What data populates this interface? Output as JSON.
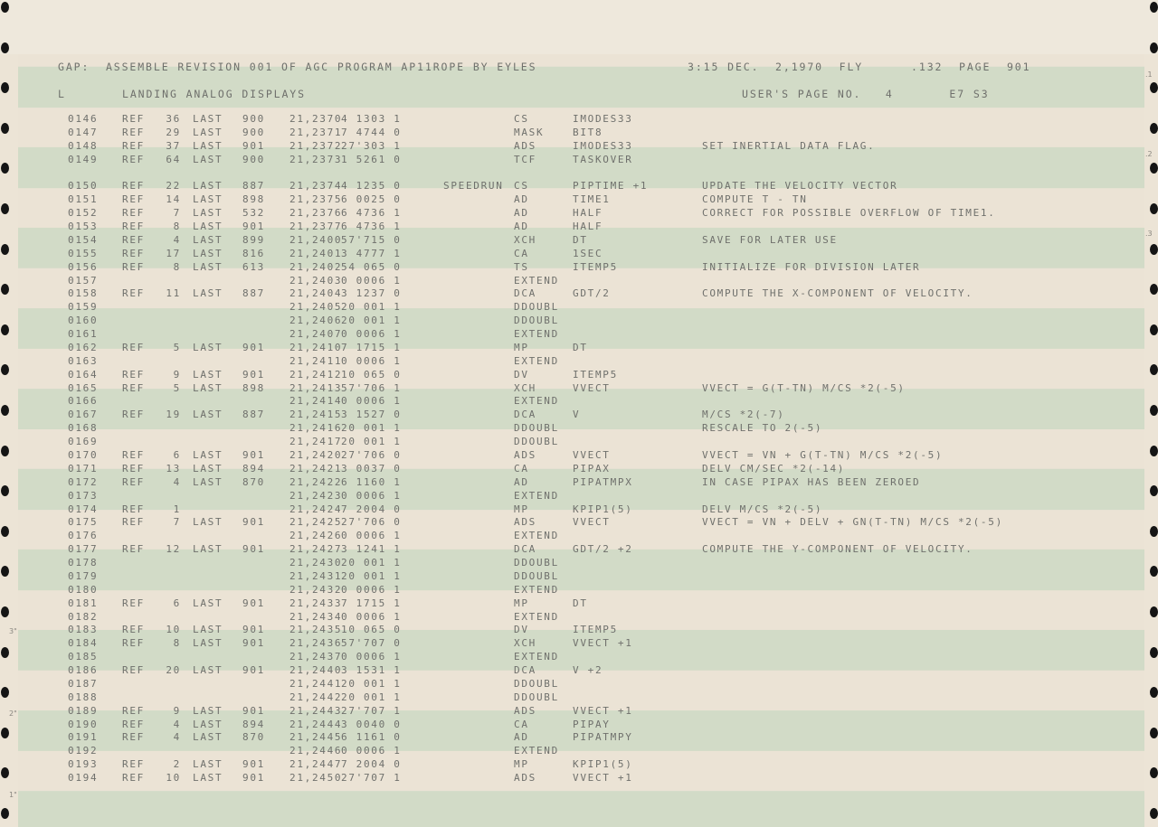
{
  "header": {
    "line1_left": "GAP:  ASSEMBLE REVISION 001 OF AGC PROGRAM AP11ROPE BY EYLES",
    "line1_right": "3:15 DEC.  2,1970  FLY      .132  PAGE  901",
    "line2_left": "L",
    "line2_title": "LANDING ANALOG DISPLAYS",
    "line2_right": "USER'S PAGE NO.   4       E7 S3"
  },
  "labels": {
    "ref": "REF",
    "last": "LAST"
  },
  "margin_marks": {
    "left": [
      "3\"",
      "2\"",
      "1\""
    ],
    "right": [
      ".1",
      ".2",
      ".3"
    ]
  },
  "colors": {
    "paper": "#ebe3d5",
    "stripe": "#d2dbc7",
    "ink": "#6f706c",
    "holes": "#151515"
  },
  "rows": [
    {
      "line": "0146",
      "ref": "36",
      "last": "900",
      "addr": "21,2370",
      "code": "4 1303 1",
      "label": "",
      "op": "CS",
      "operand": "IMODES33",
      "comment": ""
    },
    {
      "line": "0147",
      "ref": "29",
      "last": "900",
      "addr": "21,2371",
      "code": "7 4744 0",
      "label": "",
      "op": "MASK",
      "operand": "BIT8",
      "comment": ""
    },
    {
      "line": "0148",
      "ref": "37",
      "last": "901",
      "addr": "21,2372",
      "code": "27'303 1",
      "label": "",
      "op": "ADS",
      "operand": "IMODES33",
      "comment": "SET INERTIAL DATA FLAG."
    },
    {
      "line": "0149",
      "ref": "64",
      "last": "900",
      "addr": "21,2373",
      "code": "1 5261 0",
      "label": "",
      "op": "TCF",
      "operand": "TASKOVER",
      "comment": ""
    },
    {
      "blank": true
    },
    {
      "line": "0150",
      "ref": "22",
      "last": "887",
      "addr": "21,2374",
      "code": "4 1235 0",
      "label": "SPEEDRUN",
      "op": "CS",
      "operand": "PIPTIME +1",
      "comment": "UPDATE THE VELOCITY VECTOR"
    },
    {
      "line": "0151",
      "ref": "14",
      "last": "898",
      "addr": "21,2375",
      "code": "6 0025 0",
      "label": "",
      "op": "AD",
      "operand": "TIME1",
      "comment": "COMPUTE T - TN"
    },
    {
      "line": "0152",
      "ref": "7",
      "last": "532",
      "addr": "21,2376",
      "code": "6 4736 1",
      "label": "",
      "op": "AD",
      "operand": "HALF",
      "comment": "CORRECT FOR POSSIBLE OVERFLOW OF TIME1."
    },
    {
      "line": "0153",
      "ref": "8",
      "last": "901",
      "addr": "21,2377",
      "code": "6 4736 1",
      "label": "",
      "op": "AD",
      "operand": "HALF",
      "comment": ""
    },
    {
      "line": "0154",
      "ref": "4",
      "last": "899",
      "addr": "21,2400",
      "code": "57'715 0",
      "label": "",
      "op": "XCH",
      "operand": "DT",
      "comment": "SAVE FOR LATER USE"
    },
    {
      "line": "0155",
      "ref": "17",
      "last": "816",
      "addr": "21,2401",
      "code": "3 4777 1",
      "label": "",
      "op": "CA",
      "operand": "1SEC",
      "comment": ""
    },
    {
      "line": "0156",
      "ref": "8",
      "last": "613",
      "addr": "21,2402",
      "code": "54 065 0",
      "label": "",
      "op": "TS",
      "operand": "ITEMP5",
      "comment": "INITIALIZE FOR DIVISION LATER"
    },
    {
      "line": "0157",
      "ref": "",
      "last": "",
      "addr": "21,2403",
      "code": "0 0006 1",
      "label": "",
      "op": "EXTEND",
      "operand": "",
      "comment": ""
    },
    {
      "line": "0158",
      "ref": "11",
      "last": "887",
      "addr": "21,2404",
      "code": "3 1237 0",
      "label": "",
      "op": "DCA",
      "operand": "GDT/2",
      "comment": "COMPUTE THE X-COMPONENT OF VELOCITY."
    },
    {
      "line": "0159",
      "ref": "",
      "last": "",
      "addr": "21,2405",
      "code": "20 001 1",
      "label": "",
      "op": "DDOUBL",
      "operand": "",
      "comment": ""
    },
    {
      "line": "0160",
      "ref": "",
      "last": "",
      "addr": "21,2406",
      "code": "20 001 1",
      "label": "",
      "op": "DDOUBL",
      "operand": "",
      "comment": ""
    },
    {
      "line": "0161",
      "ref": "",
      "last": "",
      "addr": "21,2407",
      "code": "0 0006 1",
      "label": "",
      "op": "EXTEND",
      "operand": "",
      "comment": ""
    },
    {
      "line": "0162",
      "ref": "5",
      "last": "901",
      "addr": "21,2410",
      "code": "7 1715 1",
      "label": "",
      "op": "MP",
      "operand": "DT",
      "comment": ""
    },
    {
      "line": "0163",
      "ref": "",
      "last": "",
      "addr": "21,2411",
      "code": "0 0006 1",
      "label": "",
      "op": "EXTEND",
      "operand": "",
      "comment": ""
    },
    {
      "line": "0164",
      "ref": "9",
      "last": "901",
      "addr": "21,2412",
      "code": "10 065 0",
      "label": "",
      "op": "DV",
      "operand": "ITEMP5",
      "comment": ""
    },
    {
      "line": "0165",
      "ref": "5",
      "last": "898",
      "addr": "21,2413",
      "code": "57'706 1",
      "label": "",
      "op": "XCH",
      "operand": "VVECT",
      "comment": "VVECT = G(T-TN) M/CS *2(-5)"
    },
    {
      "line": "0166",
      "ref": "",
      "last": "",
      "addr": "21,2414",
      "code": "0 0006 1",
      "label": "",
      "op": "EXTEND",
      "operand": "",
      "comment": ""
    },
    {
      "line": "0167",
      "ref": "19",
      "last": "887",
      "addr": "21,2415",
      "code": "3 1527 0",
      "label": "",
      "op": "DCA",
      "operand": "V",
      "comment": "M/CS *2(-7)"
    },
    {
      "line": "0168",
      "ref": "",
      "last": "",
      "addr": "21,2416",
      "code": "20 001 1",
      "label": "",
      "op": "DDOUBL",
      "operand": "",
      "comment": "RESCALE TO 2(-5)"
    },
    {
      "line": "0169",
      "ref": "",
      "last": "",
      "addr": "21,2417",
      "code": "20 001 1",
      "label": "",
      "op": "DDOUBL",
      "operand": "",
      "comment": ""
    },
    {
      "line": "0170",
      "ref": "6",
      "last": "901",
      "addr": "21,2420",
      "code": "27'706 0",
      "label": "",
      "op": "ADS",
      "operand": "VVECT",
      "comment": "VVECT = VN + G(T-TN) M/CS *2(-5)"
    },
    {
      "line": "0171",
      "ref": "13",
      "last": "894",
      "addr": "21,2421",
      "code": "3 0037 0",
      "label": "",
      "op": "CA",
      "operand": "PIPAX",
      "comment": "DELV CM/SEC *2(-14)"
    },
    {
      "line": "0172",
      "ref": "4",
      "last": "870",
      "addr": "21,2422",
      "code": "6 1160 1",
      "label": "",
      "op": "AD",
      "operand": "PIPATMPX",
      "comment": "IN CASE PIPAX HAS BEEN ZEROED"
    },
    {
      "line": "0173",
      "ref": "",
      "last": "",
      "addr": "21,2423",
      "code": "0 0006 1",
      "label": "",
      "op": "EXTEND",
      "operand": "",
      "comment": ""
    },
    {
      "line": "0174",
      "ref": "1",
      "last": "",
      "addr": "21,2424",
      "code": "7 2004 0",
      "label": "",
      "op": "MP",
      "operand": "KPIP1(5)",
      "comment": "DELV M/CS *2(-5)"
    },
    {
      "line": "0175",
      "ref": "7",
      "last": "901",
      "addr": "21,2425",
      "code": "27'706 0",
      "label": "",
      "op": "ADS",
      "operand": "VVECT",
      "comment": "VVECT = VN + DELV + GN(T-TN) M/CS *2(-5)"
    },
    {
      "line": "0176",
      "ref": "",
      "last": "",
      "addr": "21,2426",
      "code": "0 0006 1",
      "label": "",
      "op": "EXTEND",
      "operand": "",
      "comment": ""
    },
    {
      "line": "0177",
      "ref": "12",
      "last": "901",
      "addr": "21,2427",
      "code": "3 1241 1",
      "label": "",
      "op": "DCA",
      "operand": "GDT/2 +2",
      "comment": "COMPUTE THE Y-COMPONENT OF VELOCITY."
    },
    {
      "line": "0178",
      "ref": "",
      "last": "",
      "addr": "21,2430",
      "code": "20 001 1",
      "label": "",
      "op": "DDOUBL",
      "operand": "",
      "comment": ""
    },
    {
      "line": "0179",
      "ref": "",
      "last": "",
      "addr": "21,2431",
      "code": "20 001 1",
      "label": "",
      "op": "DDOUBL",
      "operand": "",
      "comment": ""
    },
    {
      "line": "0180",
      "ref": "",
      "last": "",
      "addr": "21,2432",
      "code": "0 0006 1",
      "label": "",
      "op": "EXTEND",
      "operand": "",
      "comment": ""
    },
    {
      "line": "0181",
      "ref": "6",
      "last": "901",
      "addr": "21,2433",
      "code": "7 1715 1",
      "label": "",
      "op": "MP",
      "operand": "DT",
      "comment": ""
    },
    {
      "line": "0182",
      "ref": "",
      "last": "",
      "addr": "21,2434",
      "code": "0 0006 1",
      "label": "",
      "op": "EXTEND",
      "operand": "",
      "comment": ""
    },
    {
      "line": "0183",
      "ref": "10",
      "last": "901",
      "addr": "21,2435",
      "code": "10 065 0",
      "label": "",
      "op": "DV",
      "operand": "ITEMP5",
      "comment": ""
    },
    {
      "line": "0184",
      "ref": "8",
      "last": "901",
      "addr": "21,2436",
      "code": "57'707 0",
      "label": "",
      "op": "XCH",
      "operand": "VVECT +1",
      "comment": ""
    },
    {
      "line": "0185",
      "ref": "",
      "last": "",
      "addr": "21,2437",
      "code": "0 0006 1",
      "label": "",
      "op": "EXTEND",
      "operand": "",
      "comment": ""
    },
    {
      "line": "0186",
      "ref": "20",
      "last": "901",
      "addr": "21,2440",
      "code": "3 1531 1",
      "label": "",
      "op": "DCA",
      "operand": "V +2",
      "comment": ""
    },
    {
      "line": "0187",
      "ref": "",
      "last": "",
      "addr": "21,2441",
      "code": "20 001 1",
      "label": "",
      "op": "DDOUBL",
      "operand": "",
      "comment": ""
    },
    {
      "line": "0188",
      "ref": "",
      "last": "",
      "addr": "21,2442",
      "code": "20 001 1",
      "label": "",
      "op": "DDOUBL",
      "operand": "",
      "comment": ""
    },
    {
      "line": "0189",
      "ref": "9",
      "last": "901",
      "addr": "21,2443",
      "code": "27'707 1",
      "label": "",
      "op": "ADS",
      "operand": "VVECT +1",
      "comment": ""
    },
    {
      "line": "0190",
      "ref": "4",
      "last": "894",
      "addr": "21,2444",
      "code": "3 0040 0",
      "label": "",
      "op": "CA",
      "operand": "PIPAY",
      "comment": ""
    },
    {
      "line": "0191",
      "ref": "4",
      "last": "870",
      "addr": "21,2445",
      "code": "6 1161 0",
      "label": "",
      "op": "AD",
      "operand": "PIPATMPY",
      "comment": ""
    },
    {
      "line": "0192",
      "ref": "",
      "last": "",
      "addr": "21,2446",
      "code": "0 0006 1",
      "label": "",
      "op": "EXTEND",
      "operand": "",
      "comment": ""
    },
    {
      "line": "0193",
      "ref": "2",
      "last": "901",
      "addr": "21,2447",
      "code": "7 2004 0",
      "label": "",
      "op": "MP",
      "operand": "KPIP1(5)",
      "comment": ""
    },
    {
      "line": "0194",
      "ref": "10",
      "last": "901",
      "addr": "21,2450",
      "code": "27'707 1",
      "label": "",
      "op": "ADS",
      "operand": "VVECT +1",
      "comment": ""
    }
  ]
}
